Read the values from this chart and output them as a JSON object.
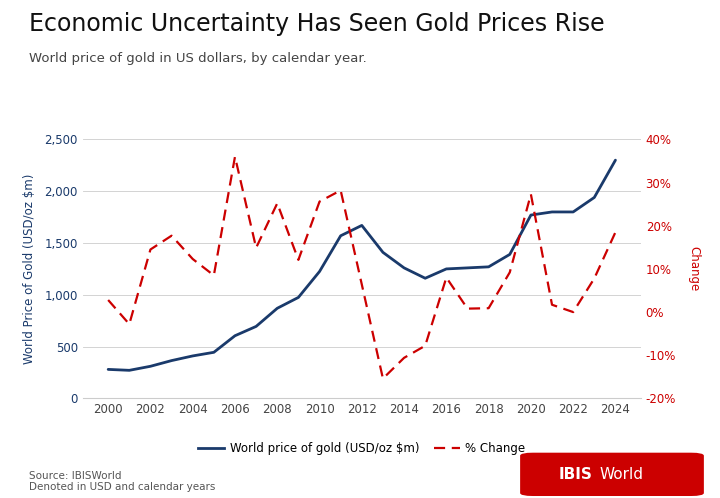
{
  "title": "Economic Uncertainty Has Seen Gold Prices Rise",
  "subtitle": "World price of gold in US dollars, by calendar year.",
  "source_text": "Source: IBISWorld\nDenoted in USD and calendar years",
  "ylabel_left": "World Price of Gold (USD/oz $m)",
  "ylabel_right": "Change",
  "legend_line1": "World price of gold (USD/oz $m)",
  "legend_line2": "% Change",
  "years": [
    2000,
    2001,
    2002,
    2003,
    2004,
    2005,
    2006,
    2007,
    2008,
    2009,
    2010,
    2011,
    2012,
    2013,
    2014,
    2015,
    2016,
    2017,
    2018,
    2019,
    2020,
    2021,
    2022,
    2023,
    2024
  ],
  "gold_price": [
    280,
    271,
    310,
    365,
    410,
    445,
    605,
    695,
    870,
    975,
    1225,
    1570,
    1670,
    1410,
    1260,
    1160,
    1250,
    1260,
    1270,
    1390,
    1770,
    1800,
    1800,
    1940,
    2300
  ],
  "pct_change": [
    2.8,
    -2.8,
    14.5,
    17.7,
    12.3,
    8.5,
    36.0,
    14.9,
    25.2,
    12.1,
    25.6,
    28.2,
    6.4,
    -15.4,
    -10.6,
    -7.8,
    8.0,
    0.8,
    0.9,
    9.2,
    27.3,
    1.7,
    0.0,
    7.8,
    18.5
  ],
  "gold_color": "#1a3a6b",
  "pct_color": "#cc0000",
  "background_color": "#ffffff",
  "ylim_left": [
    0,
    2500
  ],
  "ylim_right": [
    -20,
    40
  ],
  "yticks_left": [
    0,
    500,
    1000,
    1500,
    2000,
    2500
  ],
  "yticks_right": [
    -20,
    -10,
    0,
    10,
    20,
    30,
    40
  ],
  "xticks": [
    2000,
    2002,
    2004,
    2006,
    2008,
    2010,
    2012,
    2014,
    2016,
    2018,
    2020,
    2022,
    2024
  ],
  "title_fontsize": 17,
  "subtitle_fontsize": 9.5,
  "axis_label_fontsize": 8.5,
  "tick_fontsize": 8.5,
  "legend_fontsize": 8.5,
  "source_fontsize": 7.5,
  "logo_fontsize": 11
}
